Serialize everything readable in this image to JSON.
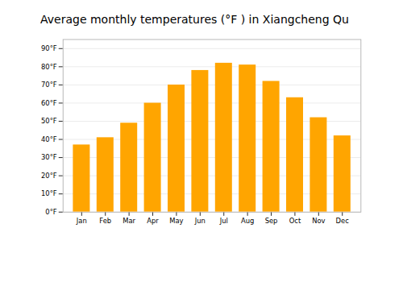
{
  "chart_data": {
    "type": "bar",
    "title": "Average monthly temperatures (°F ) in Xiangcheng Qu",
    "categories": [
      "Jan",
      "Feb",
      "Mar",
      "Apr",
      "May",
      "Jun",
      "Jul",
      "Aug",
      "Sep",
      "Oct",
      "Nov",
      "Dec"
    ],
    "values": [
      37,
      41,
      49,
      60,
      70,
      78,
      82,
      81,
      72,
      63,
      52,
      42
    ],
    "color": "#FFA500",
    "ylim": [
      0,
      95
    ],
    "yticks": [
      {
        "value": 0,
        "label": "0°F"
      },
      {
        "value": 10,
        "label": "10°F"
      },
      {
        "value": 20,
        "label": "20°F"
      },
      {
        "value": 30,
        "label": "30°F"
      },
      {
        "value": 40,
        "label": "40°F"
      },
      {
        "value": 50,
        "label": "50°F"
      },
      {
        "value": 60,
        "label": "60°F"
      },
      {
        "value": 70,
        "label": "70°F"
      },
      {
        "value": 80,
        "label": "80°F"
      },
      {
        "value": 90,
        "label": "90°F"
      }
    ],
    "grid": true
  }
}
